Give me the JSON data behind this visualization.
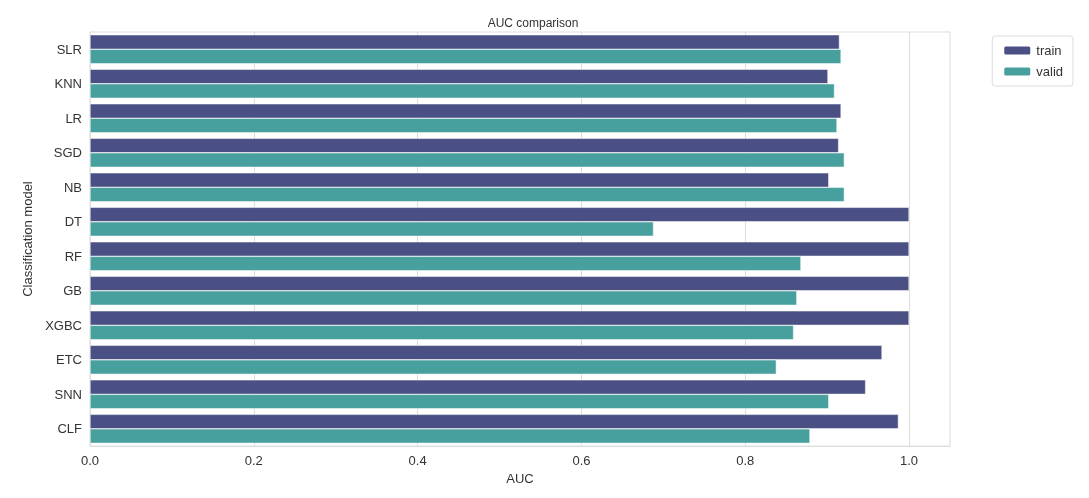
{
  "chart_data": {
    "type": "bar",
    "orientation": "horizontal",
    "title": "AUC comparison",
    "xlabel": "AUC",
    "ylabel": "Classification model",
    "categories": [
      "SLR",
      "KNN",
      "LR",
      "SGD",
      "NB",
      "DT",
      "RF",
      "GB",
      "XGBC",
      "ETC",
      "SNN",
      "CLF"
    ],
    "series": [
      {
        "name": "train",
        "color": "#4a5083",
        "values": [
          0.915,
          0.901,
          0.917,
          0.914,
          0.902,
          1.0,
          1.0,
          1.0,
          1.0,
          0.967,
          0.947,
          0.987
        ]
      },
      {
        "name": "valid",
        "color": "#48a09e",
        "values": [
          0.917,
          0.909,
          0.912,
          0.921,
          0.921,
          0.688,
          0.868,
          0.863,
          0.859,
          0.838,
          0.902,
          0.879
        ]
      }
    ],
    "xlim": [
      0,
      1.05
    ],
    "xticks": [
      {
        "value": 0,
        "label": "0.0"
      },
      0.2,
      0.4,
      0.6,
      0.8,
      {
        "value": 1,
        "label": "1.0"
      }
    ],
    "grid": "x",
    "legend": "top right"
  }
}
